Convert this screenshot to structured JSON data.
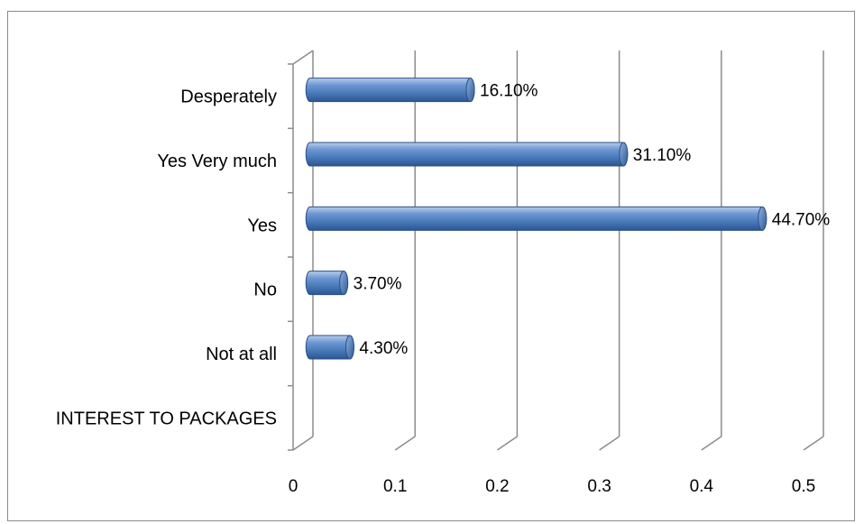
{
  "chart_data": {
    "type": "bar",
    "orientation": "horizontal",
    "style": "3d-cylinder",
    "categories": [
      "INTEREST TO PACKAGES",
      "Not at all",
      "No",
      "Yes",
      "Yes Very much",
      "Desperately"
    ],
    "values": [
      null,
      0.043,
      0.037,
      0.447,
      0.311,
      0.161
    ],
    "data_labels": [
      "",
      "4.30%",
      "3.70%",
      "44.70%",
      "31.10%",
      "16.10%"
    ],
    "xlim": [
      0,
      0.5
    ],
    "xticks": [
      "0",
      "0.1",
      "0.2",
      "0.3",
      "0.4",
      "0.5"
    ],
    "grid": "vertical",
    "legend": "none",
    "bar_color": "#4f81bd",
    "title": "",
    "xlabel": "",
    "ylabel": ""
  }
}
